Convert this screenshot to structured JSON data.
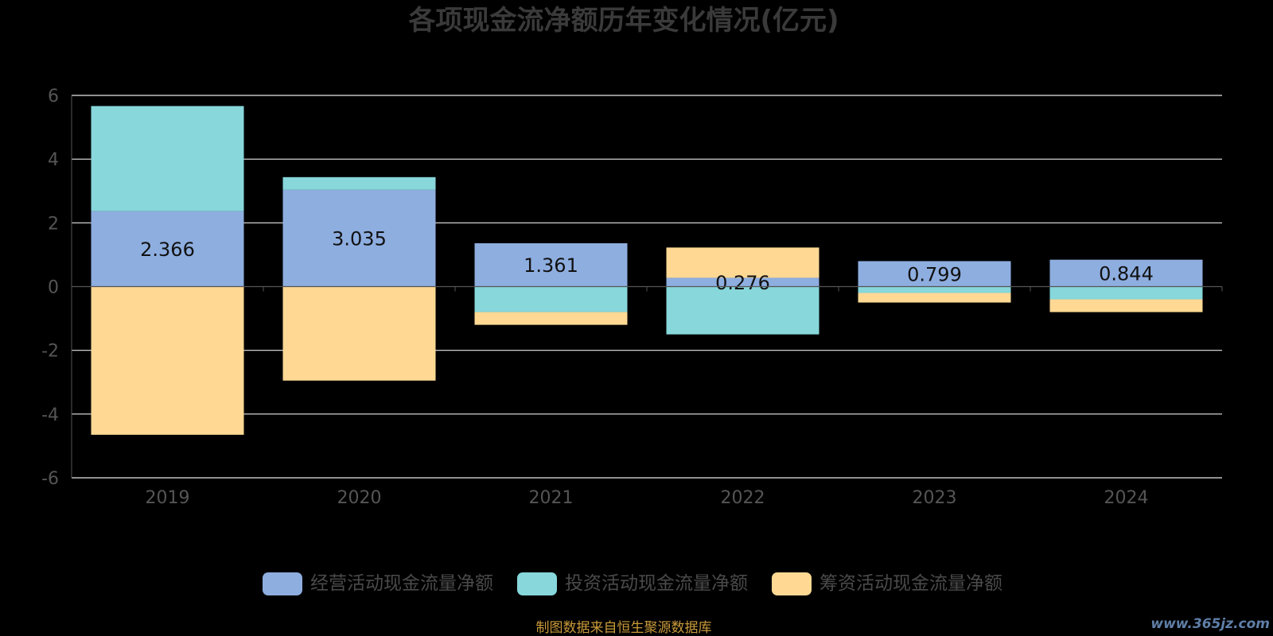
{
  "chart_data": {
    "type": "bar",
    "stacked": true,
    "title": "各项现金流净额历年变化情况(亿元)",
    "categories": [
      "2019",
      "2020",
      "2021",
      "2022",
      "2023",
      "2024"
    ],
    "series": [
      {
        "name": "经营活动现金流量净额",
        "color": "#8eaee0",
        "values": [
          2.366,
          3.035,
          1.361,
          0.276,
          0.799,
          0.844
        ]
      },
      {
        "name": "投资活动现金流量净额",
        "color": "#87d7db",
        "values": [
          3.3,
          0.4,
          -0.8,
          -1.5,
          -0.2,
          -0.4
        ]
      },
      {
        "name": "筹资活动现金流量净额",
        "color": "#ffd994",
        "values": [
          -4.65,
          -2.95,
          -0.4,
          0.95,
          -0.3,
          -0.4
        ]
      }
    ],
    "data_labels": [
      "2.366",
      "3.035",
      "1.361",
      "0.276",
      "0.799",
      "0.844"
    ],
    "ylim": [
      -6,
      6
    ],
    "yticks": [
      "6",
      "4",
      "2",
      "0",
      "-2",
      "-4",
      "-6"
    ],
    "grid": true,
    "legend_position": "bottom"
  },
  "footer": {
    "source": "制图数据来自恒生聚源数据库",
    "watermark": "www.365jz.com"
  }
}
